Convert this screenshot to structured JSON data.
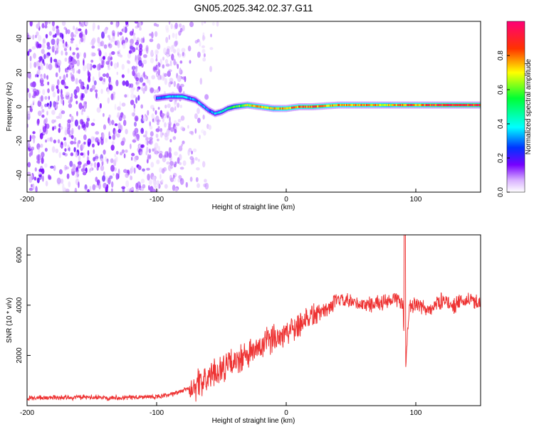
{
  "chart_data": [
    {
      "type": "heatmap",
      "title": "GN05.2025.342.02.37.G11",
      "xlabel": "Height of straight line (km)",
      "ylabel": "Frequency (Hz)",
      "xlim": [
        -200,
        150
      ],
      "ylim": [
        -50,
        50
      ],
      "xticks": [
        "-200",
        "-100",
        "0",
        "100"
      ],
      "yticks": [
        "-40",
        "-20",
        "0",
        "20",
        "40"
      ],
      "xtick_values": [
        -200,
        -100,
        0,
        100
      ],
      "ytick_values": [
        -40,
        -20,
        0,
        20,
        40
      ],
      "noise_region_km": [
        -200,
        -52
      ],
      "signal_track": {
        "description_points_km": [
          -100,
          -90,
          -80,
          -70,
          -65,
          -60,
          -55,
          -50,
          -45,
          -40,
          -30,
          -20,
          -10,
          0,
          10,
          20,
          40,
          60,
          80,
          90,
          100,
          120,
          150
        ],
        "frequency_hz": [
          5,
          6,
          6,
          4,
          1,
          -2,
          -4,
          -3,
          -1,
          0,
          1,
          0,
          -1,
          -1,
          0,
          0,
          1,
          1,
          1,
          1,
          1,
          1,
          1
        ],
        "amplitude": [
          0.3,
          0.35,
          0.4,
          0.3,
          0.35,
          0.3,
          0.35,
          0.4,
          0.45,
          0.55,
          0.7,
          0.75,
          0.7,
          0.8,
          0.8,
          0.85,
          0.75,
          0.8,
          0.7,
          0.85,
          0.8,
          0.9,
          0.9
        ]
      },
      "colorbar": {
        "label": "Normalized spectral amplitude",
        "ticks": [
          "0.0",
          "0.2",
          "0.4",
          "0.6",
          "0.8"
        ],
        "tick_values": [
          0,
          0.2,
          0.4,
          0.6,
          0.8
        ],
        "range": [
          0,
          1
        ]
      }
    },
    {
      "type": "line",
      "xlabel": "Height of straight line (km)",
      "ylabel": "SNR (10 * v/v)",
      "xlim": [
        -200,
        150
      ],
      "ylim": [
        0,
        6800
      ],
      "xticks": [
        "-200",
        "-100",
        "0",
        "100"
      ],
      "yticks": [
        "2000",
        "4000",
        "6000"
      ],
      "xtick_values": [
        -200,
        -100,
        0,
        100
      ],
      "ytick_values": [
        2000,
        4000,
        6000
      ],
      "color": "#ee3333",
      "x": [
        -200,
        -180,
        -160,
        -140,
        -120,
        -100,
        -90,
        -80,
        -70,
        -60,
        -50,
        -40,
        -30,
        -20,
        -10,
        0,
        10,
        20,
        30,
        40,
        50,
        60,
        70,
        80,
        85,
        90,
        92,
        95,
        100,
        110,
        120,
        130,
        140,
        150
      ],
      "y": [
        300,
        320,
        330,
        320,
        330,
        350,
        420,
        600,
        800,
        1100,
        1500,
        1700,
        2000,
        2300,
        2700,
        2900,
        3300,
        3600,
        3800,
        4200,
        4100,
        4000,
        4100,
        4100,
        4300,
        4000,
        1500,
        4000,
        4000,
        3800,
        4200,
        4000,
        4200,
        4100
      ]
    }
  ]
}
